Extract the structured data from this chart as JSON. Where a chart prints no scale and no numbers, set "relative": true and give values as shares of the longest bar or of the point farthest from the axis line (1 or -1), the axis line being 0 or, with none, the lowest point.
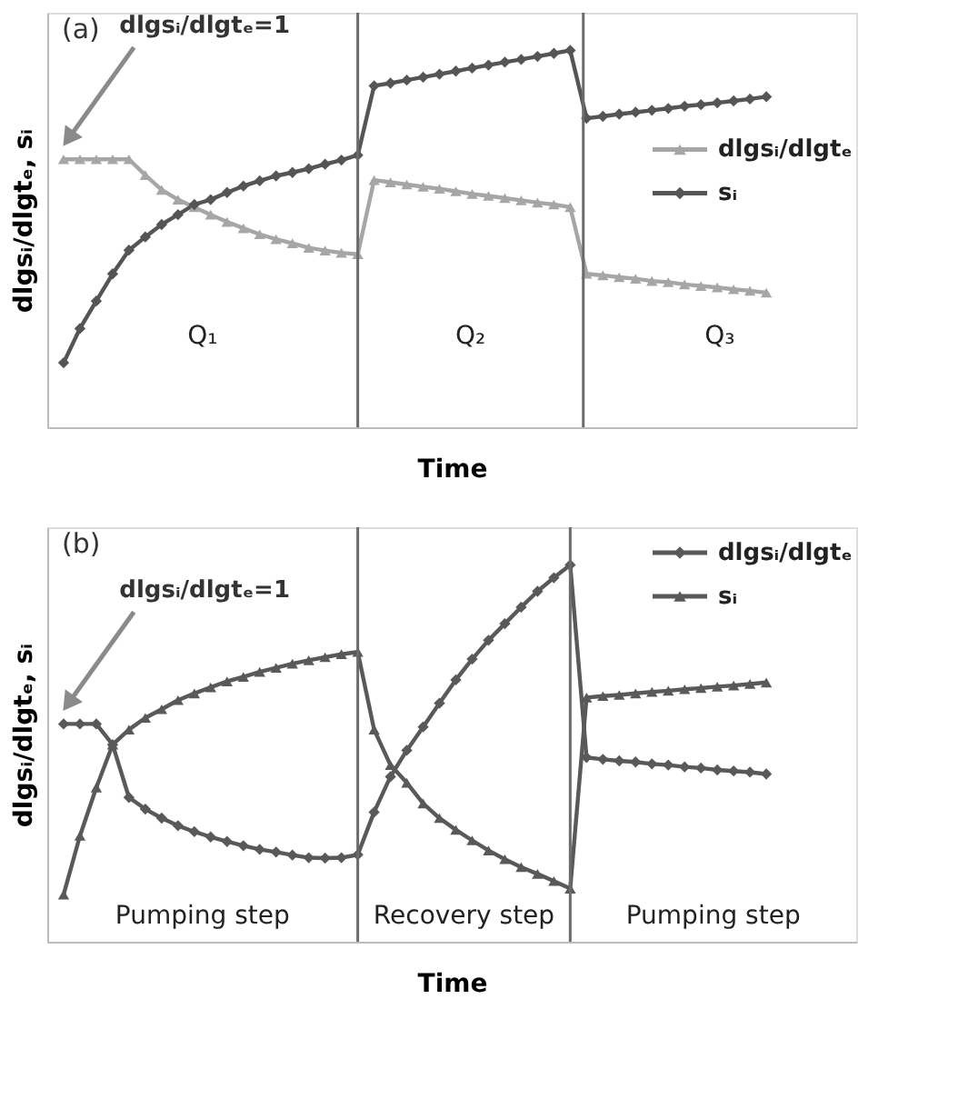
{
  "chart_data": [
    {
      "type": "line",
      "title": "(a)",
      "xlabel": "Time",
      "ylabel": "dlgsᵢ/dlgtₑ, sᵢ",
      "relative": true,
      "legend": "right",
      "categories": [
        null,
        null,
        null,
        null,
        null,
        null,
        null,
        null,
        null,
        null,
        null,
        null,
        null,
        null,
        null,
        null,
        null,
        null,
        null,
        null,
        null,
        null,
        null,
        null,
        null,
        null,
        null,
        null,
        null,
        null,
        null,
        null,
        null,
        null,
        null,
        null,
        null,
        null,
        null,
        null,
        null,
        null,
        null,
        null
      ],
      "series": [
        {
          "name": "dlgsᵢ/dlgtₑ",
          "color": "#a6a6a6",
          "marker": "triangle",
          "values": [
            0.711,
            0.711,
            0.711,
            0.711,
            0.711,
            0.669,
            0.63,
            0.604,
            0.584,
            0.564,
            0.545,
            0.528,
            0.512,
            0.499,
            0.488,
            0.476,
            0.469,
            0.463,
            0.459,
            0.656,
            0.65,
            0.644,
            0.638,
            0.633,
            0.626,
            0.619,
            0.614,
            0.608,
            0.602,
            0.596,
            0.591,
            0.584,
            0.407,
            0.403,
            0.398,
            0.394,
            0.388,
            0.385,
            0.379,
            0.375,
            0.371,
            0.366,
            0.362,
            0.357
          ]
        },
        {
          "name": "sᵢ",
          "color": "#555555",
          "marker": "diamond",
          "values": [
            0.171,
            0.262,
            0.335,
            0.407,
            0.47,
            0.505,
            0.538,
            0.564,
            0.591,
            0.604,
            0.623,
            0.64,
            0.654,
            0.667,
            0.676,
            0.686,
            0.698,
            0.709,
            0.722,
            0.906,
            0.913,
            0.921,
            0.929,
            0.937,
            0.945,
            0.953,
            0.961,
            0.969,
            0.976,
            0.984,
            0.992,
            1.0,
            0.82,
            0.825,
            0.831,
            0.836,
            0.841,
            0.846,
            0.852,
            0.856,
            0.861,
            0.866,
            0.871,
            0.877
          ]
        }
      ],
      "annotations": [
        "dlgsᵢ/dlgtₑ=1",
        "Q₁",
        "Q₂",
        "Q₃"
      ]
    },
    {
      "type": "line",
      "title": "(b)",
      "xlabel": "Time",
      "ylabel": "dlgsᵢ/dlgtₑ, sᵢ",
      "relative": true,
      "legend": "top right",
      "categories": [
        null,
        null,
        null,
        null,
        null,
        null,
        null,
        null,
        null,
        null,
        null,
        null,
        null,
        null,
        null,
        null,
        null,
        null,
        null,
        null,
        null,
        null,
        null,
        null,
        null,
        null,
        null,
        null,
        null,
        null,
        null,
        null,
        null,
        null,
        null,
        null,
        null,
        null,
        null,
        null,
        null,
        null,
        null,
        null
      ],
      "series": [
        {
          "name": "dlgsᵢ/dlgtₑ",
          "color": "#595959",
          "marker": "diamond",
          "values": [
            0.578,
            0.578,
            0.578,
            0.523,
            0.383,
            0.352,
            0.328,
            0.308,
            0.292,
            0.278,
            0.266,
            0.255,
            0.245,
            0.238,
            0.23,
            0.223,
            0.222,
            0.223,
            0.231,
            0.344,
            0.438,
            0.508,
            0.57,
            0.633,
            0.695,
            0.75,
            0.8,
            0.844,
            0.888,
            0.93,
            0.966,
            1.0,
            0.489,
            0.484,
            0.48,
            0.477,
            0.472,
            0.469,
            0.464,
            0.461,
            0.456,
            0.453,
            0.45,
            0.445
          ]
        },
        {
          "name": "sᵢ",
          "color": "#595959",
          "marker": "triangle",
          "values": [
            0.125,
            0.281,
            0.409,
            0.523,
            0.563,
            0.594,
            0.617,
            0.641,
            0.659,
            0.675,
            0.691,
            0.703,
            0.716,
            0.727,
            0.738,
            0.747,
            0.755,
            0.763,
            0.769,
            0.563,
            0.469,
            0.422,
            0.367,
            0.328,
            0.297,
            0.269,
            0.242,
            0.219,
            0.198,
            0.18,
            0.161,
            0.141,
            0.648,
            0.652,
            0.655,
            0.659,
            0.663,
            0.666,
            0.67,
            0.673,
            0.677,
            0.68,
            0.684,
            0.688
          ]
        }
      ],
      "annotations": [
        "dlgsᵢ/dlgtₑ=1",
        "Pumping step",
        "Recovery step",
        "Pumping step"
      ]
    }
  ]
}
